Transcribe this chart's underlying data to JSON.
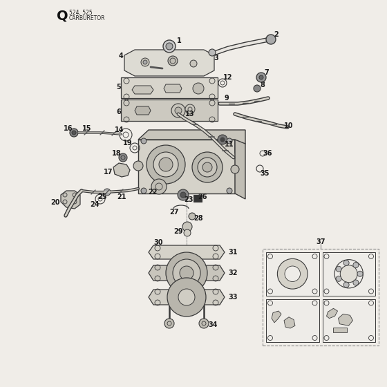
{
  "title_letter": "Q",
  "title_line1": "524, 525",
  "title_line2": "CARBURETOR",
  "bg_color": "#f0ede8",
  "line_color": "#3a3a3a",
  "label_color": "#1a1a1a",
  "fig_w": 5.6,
  "fig_h": 5.6,
  "dpi": 100
}
